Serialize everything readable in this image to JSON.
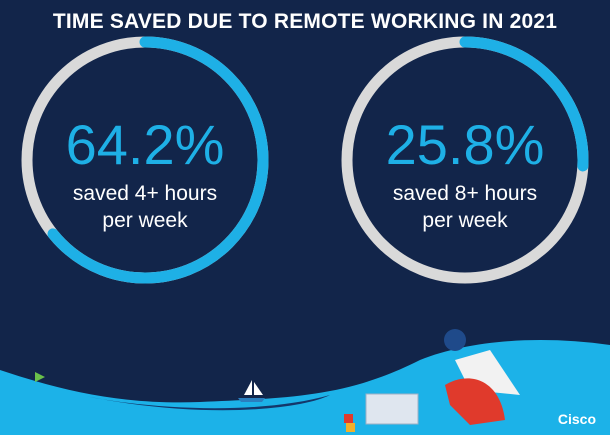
{
  "title": "TIME SAVED DUE TO REMOTE WORKING IN 2021",
  "chart_data": [
    {
      "type": "pie",
      "variant": "donut",
      "value_percent": 64.2,
      "label": "64.2%",
      "caption_line1": "saved 4+ hours",
      "caption_line2": "per week"
    },
    {
      "type": "pie",
      "variant": "donut",
      "value_percent": 25.8,
      "label": "25.8%",
      "caption_line1": "saved 8+ hours",
      "caption_line2": "per week"
    }
  ],
  "colors": {
    "background": "#12254a",
    "arc": "#1eb0e6",
    "track": "#d9d9d9",
    "ground": "#1cb2e8"
  },
  "brand": "Cisco"
}
